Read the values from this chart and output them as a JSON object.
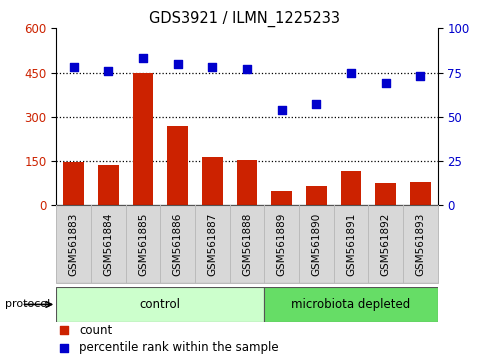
{
  "title": "GDS3921 / ILMN_1225233",
  "samples": [
    "GSM561883",
    "GSM561884",
    "GSM561885",
    "GSM561886",
    "GSM561887",
    "GSM561888",
    "GSM561889",
    "GSM561890",
    "GSM561891",
    "GSM561892",
    "GSM561893"
  ],
  "counts": [
    148,
    135,
    448,
    270,
    165,
    152,
    50,
    65,
    118,
    75,
    80
  ],
  "percentile_ranks": [
    78,
    76,
    83,
    80,
    78,
    77,
    54,
    57,
    75,
    69,
    73
  ],
  "bar_color": "#cc2200",
  "dot_color": "#0000cc",
  "ylim_left": [
    0,
    600
  ],
  "ylim_right": [
    0,
    100
  ],
  "yticks_left": [
    0,
    150,
    300,
    450,
    600
  ],
  "yticks_right": [
    0,
    25,
    50,
    75,
    100
  ],
  "control_color": "#ccffcc",
  "microbiota_color": "#66dd66",
  "legend_labels": [
    "count",
    "percentile rank within the sample"
  ]
}
